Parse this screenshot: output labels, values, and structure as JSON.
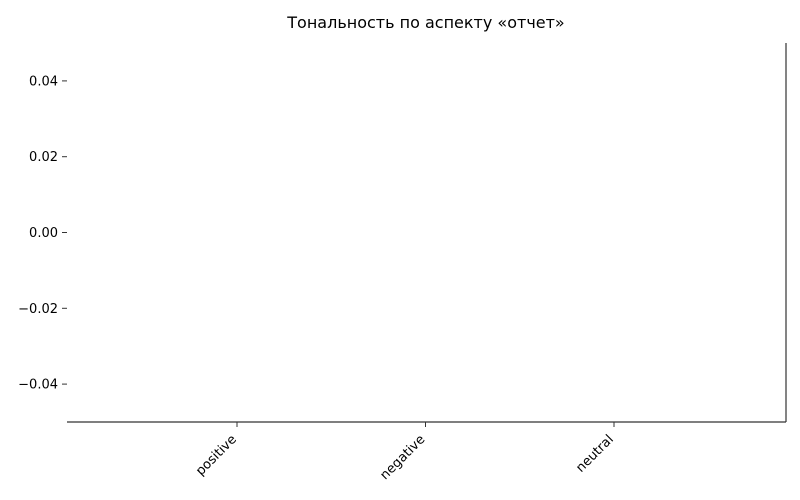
{
  "chart_data": {
    "type": "bar",
    "title": "Тональность по аспекту «отчет»",
    "categories": [
      "positive",
      "negative",
      "neutral"
    ],
    "series": [
      {
        "values": [
          0,
          0,
          0
        ]
      }
    ],
    "yticks": [
      "0.04",
      "0.02",
      "0.00",
      "−0.02",
      "−0.04"
    ],
    "ytick_values": [
      0.04,
      0.02,
      0.0,
      -0.02,
      -0.04
    ],
    "ylim": [
      -0.05,
      0.05
    ],
    "xlabel": "",
    "ylabel": "",
    "grid": false,
    "legend": "none"
  }
}
